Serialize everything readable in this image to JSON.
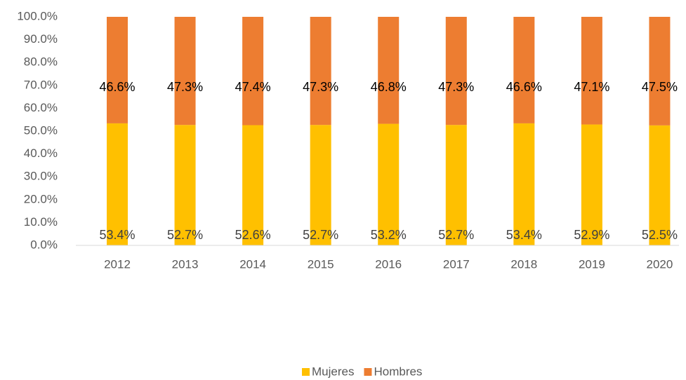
{
  "chart_data": {
    "type": "stacked_bar",
    "categories": [
      "2012",
      "2013",
      "2014",
      "2015",
      "2016",
      "2017",
      "2018",
      "2019",
      "2020"
    ],
    "series": [
      {
        "name": "Mujeres",
        "color": "#ffc000",
        "values": [
          53.4,
          52.7,
          52.6,
          52.7,
          53.2,
          52.7,
          53.4,
          52.9,
          52.5
        ],
        "value_labels": [
          "53.4%",
          "52.7%",
          "52.6%",
          "52.7%",
          "53.2%",
          "52.7%",
          "53.4%",
          "52.9%",
          "52.5%"
        ]
      },
      {
        "name": "Hombres",
        "color": "#ed7d31",
        "values": [
          46.6,
          47.3,
          47.4,
          47.3,
          46.8,
          47.3,
          46.6,
          47.1,
          47.5
        ],
        "value_labels": [
          "46.6%",
          "47.3%",
          "47.4%",
          "47.3%",
          "46.8%",
          "47.3%",
          "46.6%",
          "47.1%",
          "47.5%"
        ]
      }
    ],
    "ylim": [
      0,
      100
    ],
    "yticks": [
      {
        "value": 0,
        "label": "0.0%"
      },
      {
        "value": 10,
        "label": "10.0%"
      },
      {
        "value": 20,
        "label": "20.0%"
      },
      {
        "value": 30,
        "label": "30.0%"
      },
      {
        "value": 40,
        "label": "40.0%"
      },
      {
        "value": 50,
        "label": "50.0%"
      },
      {
        "value": 60,
        "label": "60.0%"
      },
      {
        "value": 70,
        "label": "70.0%"
      },
      {
        "value": 80,
        "label": "80.0%"
      },
      {
        "value": 90,
        "label": "90.0%"
      },
      {
        "value": 100,
        "label": "100.0%"
      }
    ],
    "grid": false,
    "legend": "bottom"
  }
}
